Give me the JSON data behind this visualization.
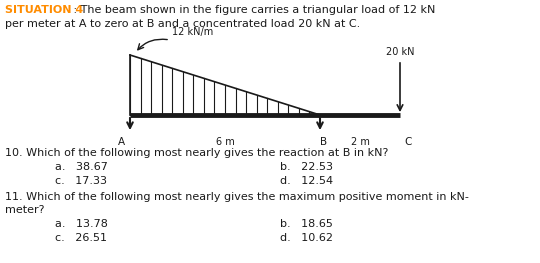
{
  "title_situation": "SITUATION 4",
  "title_sep": " : ",
  "title_rest": "The beam shown in the figure carries a triangular load of 12 kN\nper meter at A to zero at B and a concentrated load 20 kN at C.",
  "load_label": "12 kN/m",
  "conc_load_label": "20 kN",
  "dim_AB": "6 m",
  "dim_BC": "2 m",
  "label_A": "A",
  "label_B": "B",
  "label_C": "C",
  "q10": "10. Which of the following most nearly gives the reaction at B in kN?",
  "q10a": "a.   38.67",
  "q10b": "b.   22.53",
  "q10c": "c.   17.33",
  "q10d": "d.   12.54",
  "q11": "11. Which of the following most nearly gives the maximum positive moment in kN-\nmeter?",
  "q11a": "a.   13.78",
  "q11b": "b.   18.65",
  "q11c": "c.   26.51",
  "q11d": "d.   10.62",
  "color_situation": "#FF8C00",
  "color_body": "#1a1a1a",
  "beam_color": "#1a1a1a",
  "hatch_color": "#1a1a1a",
  "bg_color": "#ffffff",
  "fontsize_main": 8.0,
  "fontsize_beam": 7.0
}
